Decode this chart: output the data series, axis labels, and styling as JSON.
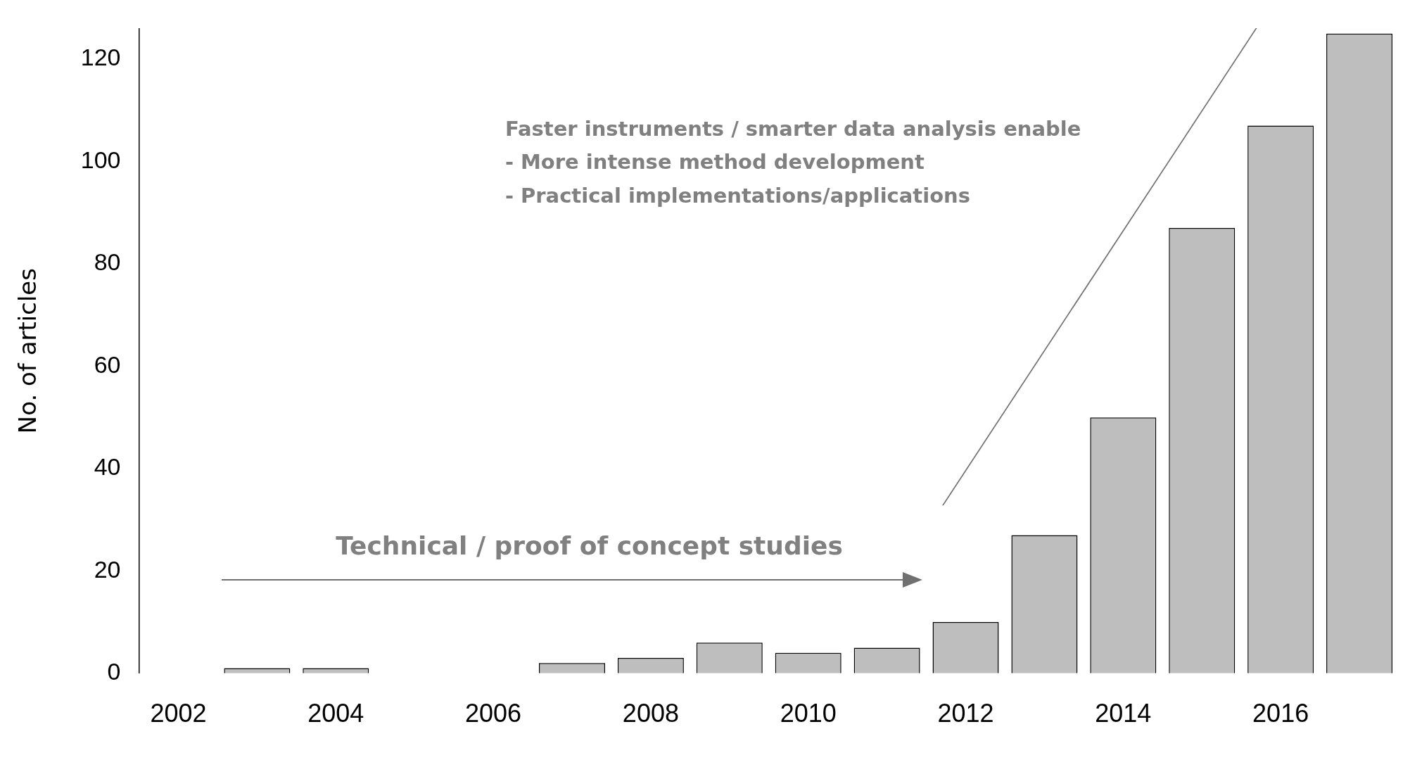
{
  "chart_data": {
    "type": "bar",
    "ylabel": "No. of articles",
    "categories": [
      "2002",
      null,
      "2004",
      null,
      "2006",
      null,
      "2008",
      null,
      "2010",
      null,
      "2012",
      null,
      "2014",
      null,
      "2016",
      null
    ],
    "values": [
      0,
      1,
      1,
      0,
      0,
      2,
      3,
      6,
      4,
      5,
      10,
      27,
      50,
      87,
      107,
      125
    ],
    "color": "#bebebe",
    "ylim": [
      0,
      126
    ],
    "yticks": [
      0,
      20,
      40,
      60,
      80,
      100,
      120
    ],
    "annotations": [
      "Technical / proof of concept studies",
      "Faster instruments / smarter data analysis enable\n- More intense method development\n- Practical implementations/applications"
    ]
  }
}
